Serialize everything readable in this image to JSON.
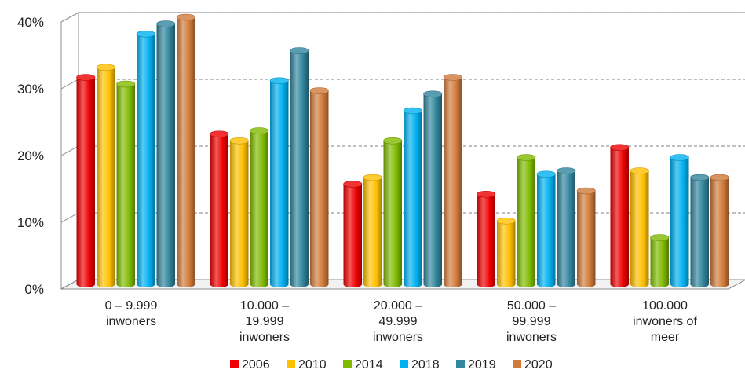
{
  "chart_data": {
    "type": "bar",
    "categories": [
      [
        "0 – 9.999",
        "inwoners"
      ],
      [
        "10.000 –",
        "19.999",
        "inwoners"
      ],
      [
        "20.000 –",
        "49.999",
        "inwoners"
      ],
      [
        "50.000 –",
        "99.999",
        "inwoners"
      ],
      [
        "100.000",
        "inwoners of",
        "meer"
      ]
    ],
    "series": [
      {
        "name": "2006",
        "color": "#ee0000",
        "values": [
          31,
          22.5,
          15,
          13.5,
          20.5
        ]
      },
      {
        "name": "2010",
        "color": "#ffc000",
        "values": [
          32.5,
          21.5,
          16,
          9.5,
          17
        ]
      },
      {
        "name": "2014",
        "color": "#7fba00",
        "values": [
          30,
          23,
          21.5,
          19,
          7
        ]
      },
      {
        "name": "2018",
        "color": "#00b0f0",
        "values": [
          37.5,
          30.5,
          26,
          16.5,
          19
        ]
      },
      {
        "name": "2019",
        "color": "#31859c",
        "values": [
          39,
          35,
          28.5,
          17,
          16
        ]
      },
      {
        "name": "2020",
        "color": "#d07a3a",
        "values": [
          40,
          29,
          31,
          14,
          16
        ]
      }
    ],
    "yticks": [
      "0%",
      "10%",
      "20%",
      "30%",
      "40%"
    ],
    "ylim": [
      0,
      40
    ],
    "grid": true,
    "legend": "bottom"
  }
}
